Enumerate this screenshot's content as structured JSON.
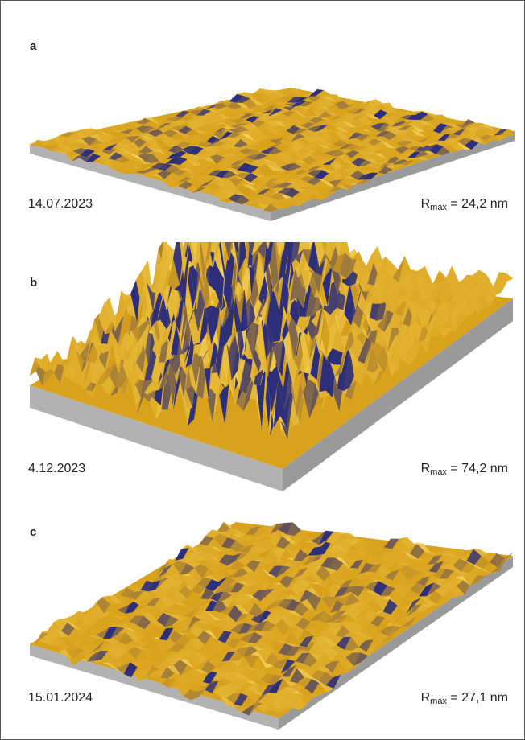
{
  "panels": [
    {
      "letter": "a",
      "date": "14.07.2023",
      "rmax_symbol": "R",
      "rmax_sub": "max",
      "rmax_value": "= 24,2 nm",
      "roughness": 24.2
    },
    {
      "letter": "b",
      "date": "4.12.2023",
      "rmax_symbol": "R",
      "rmax_sub": "max",
      "rmax_value": "= 74,2 nm",
      "roughness": 74.2
    },
    {
      "letter": "c",
      "date": "15.01.2024",
      "rmax_symbol": "R",
      "rmax_sub": "max",
      "rmax_value": "= 27,1 nm",
      "roughness": 27.1
    }
  ],
  "colors": {
    "surface_gold": "#d9a21c",
    "surface_light": "#f2cf55",
    "surface_dark": "#2e2f7a",
    "base_gray": "#b2b2b2",
    "base_gray_dark": "#9a9a9a"
  }
}
